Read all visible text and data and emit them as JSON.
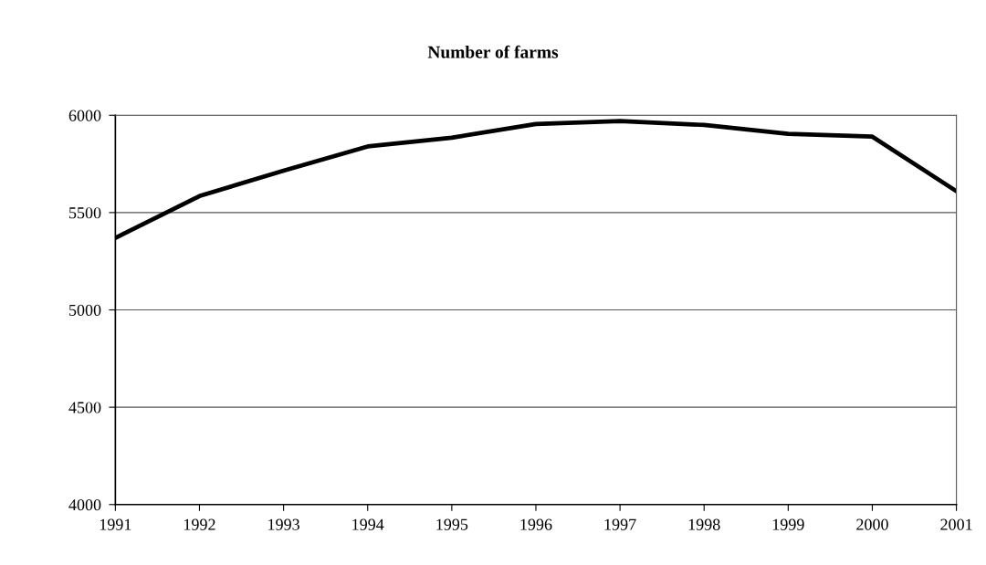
{
  "chart_data": {
    "type": "line",
    "title": "Number of farms",
    "x": [
      1991,
      1992,
      1993,
      1994,
      1995,
      1996,
      1997,
      1998,
      1999,
      2000,
      2001
    ],
    "series": [
      {
        "color": "#000000",
        "values": [
          5370,
          5585,
          5715,
          5840,
          5885,
          5955,
          5970,
          5950,
          5905,
          5890,
          5610
        ]
      }
    ],
    "xlim": [
      1991,
      2001
    ],
    "xticks": [
      1991,
      1992,
      1993,
      1994,
      1995,
      1996,
      1997,
      1998,
      1999,
      2000,
      2001
    ],
    "ylim": [
      4000,
      6000
    ],
    "yticks": [
      4000,
      4500,
      5000,
      5500,
      6000
    ],
    "grid": "y",
    "marker": "none",
    "line_style": "solid"
  }
}
